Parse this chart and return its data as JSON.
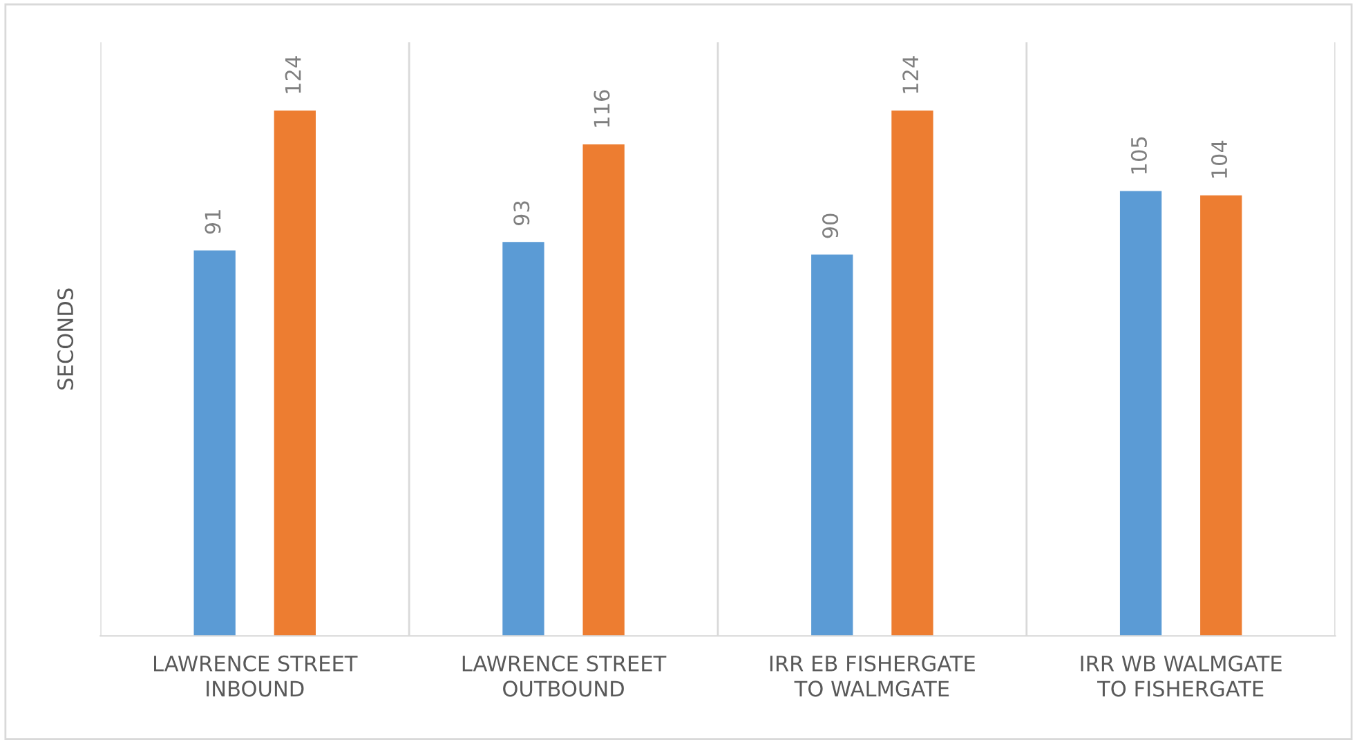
{
  "chart_data": {
    "type": "bar",
    "ylabel": "SECONDS",
    "categories": [
      "LAWRENCE STREET\nINBOUND",
      "LAWRENCE STREET\nOUTBOUND",
      "IRR EB FISHERGATE\nTO WALMGATE",
      "IRR WB WALMGATE\nTO FISHERGATE"
    ],
    "series": [
      {
        "color": "#5b9bd5",
        "values": [
          91,
          93,
          90,
          105
        ]
      },
      {
        "color": "#ed7d31",
        "values": [
          124,
          116,
          124,
          104
        ]
      }
    ],
    "data_labels": true,
    "grid": "x",
    "legend": false
  }
}
